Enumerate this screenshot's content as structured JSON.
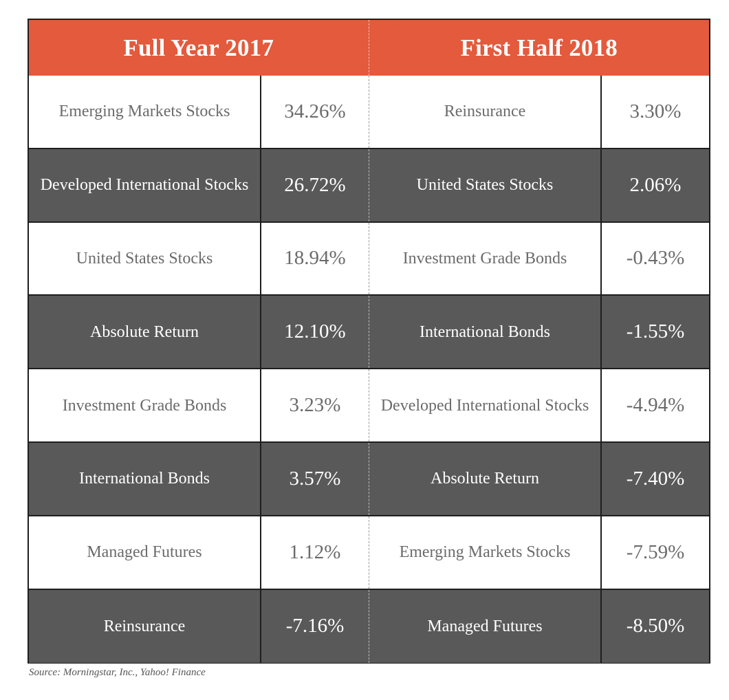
{
  "chart_data": {
    "type": "table",
    "columns": [
      {
        "header": "Full Year 2017"
      },
      {
        "header": "First Half 2018"
      }
    ],
    "rows": [
      {
        "left_name": "Emerging Markets Stocks",
        "left_value": "34.26%",
        "right_name": "Reinsurance",
        "right_value": "3.30%",
        "shade": "light"
      },
      {
        "left_name": "Developed International Stocks",
        "left_value": "26.72%",
        "right_name": "United States Stocks",
        "right_value": "2.06%",
        "shade": "dark"
      },
      {
        "left_name": "United States Stocks",
        "left_value": "18.94%",
        "right_name": "Investment Grade Bonds",
        "right_value": "-0.43%",
        "shade": "light"
      },
      {
        "left_name": "Absolute Return",
        "left_value": "12.10%",
        "right_name": "International Bonds",
        "right_value": "-1.55%",
        "shade": "dark"
      },
      {
        "left_name": "Investment Grade Bonds",
        "left_value": "3.23%",
        "right_name": "Developed International Stocks",
        "right_value": "-4.94%",
        "shade": "light"
      },
      {
        "left_name": "International Bonds",
        "left_value": "3.57%",
        "right_name": "Absolute Return",
        "right_value": "-7.40%",
        "shade": "dark"
      },
      {
        "left_name": "Managed Futures",
        "left_value": "1.12%",
        "right_name": "Emerging Markets Stocks",
        "right_value": "-7.59%",
        "shade": "light"
      },
      {
        "left_name": "Reinsurance",
        "left_value": "-7.16%",
        "right_name": "Managed Futures",
        "right_value": "-8.50%",
        "shade": "dark"
      }
    ],
    "source": "Source: Morningstar, Inc., Yahoo! Finance"
  },
  "colors": {
    "header": "#e35a3d",
    "dark_row": "#595959",
    "light_row": "#ffffff",
    "light_text": "#6b6b6b",
    "border": "#1e1e1e"
  }
}
